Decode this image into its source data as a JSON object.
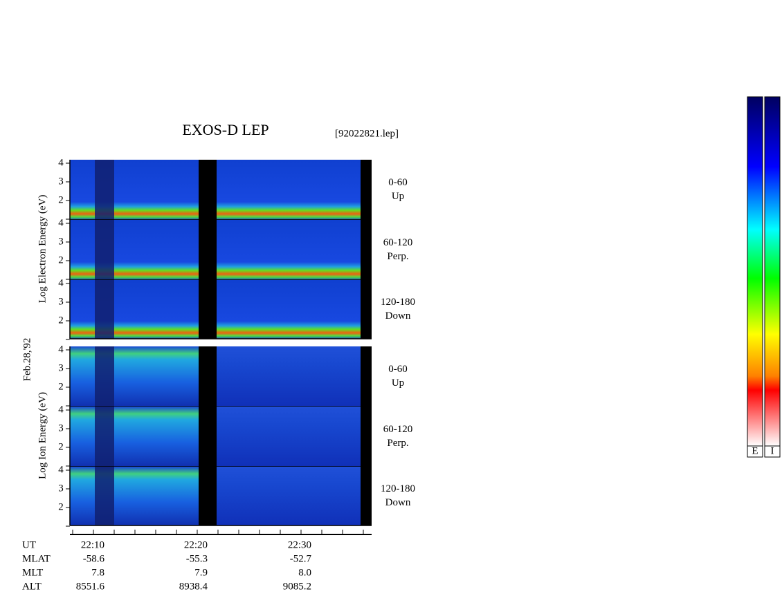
{
  "title": "EXOS-D LEP",
  "file": "[92022821.lep]",
  "date": "Feb.28,'92",
  "yticks": [
    "4",
    "3",
    "2"
  ],
  "electron": {
    "ylabel": "Log  Electron  Energy (eV)",
    "panels": [
      {
        "range": "0-60",
        "dir": "Up"
      },
      {
        "range": "60-120",
        "dir": "Perp."
      },
      {
        "range": "120-180",
        "dir": "Down"
      }
    ]
  },
  "ion": {
    "ylabel": "Log  Ion  Energy (eV)",
    "panels": [
      {
        "range": "0-60",
        "dir": "Up"
      },
      {
        "range": "60-120",
        "dir": "Perp."
      },
      {
        "range": "120-180",
        "dir": "Down"
      }
    ]
  },
  "footer": {
    "rows": [
      {
        "label": "UT",
        "values": [
          "22:10",
          "22:20",
          "22:30"
        ]
      },
      {
        "label": "MLAT",
        "values": [
          "-58.6",
          "-55.3",
          "-52.7"
        ]
      },
      {
        "label": "MLT",
        "values": [
          "7.8",
          "7.9",
          "8.0"
        ]
      },
      {
        "label": "ALT",
        "values": [
          "8551.6",
          "8938.4",
          "9085.2"
        ]
      }
    ]
  },
  "colorbar": {
    "labels": [
      "E",
      "I"
    ]
  }
}
